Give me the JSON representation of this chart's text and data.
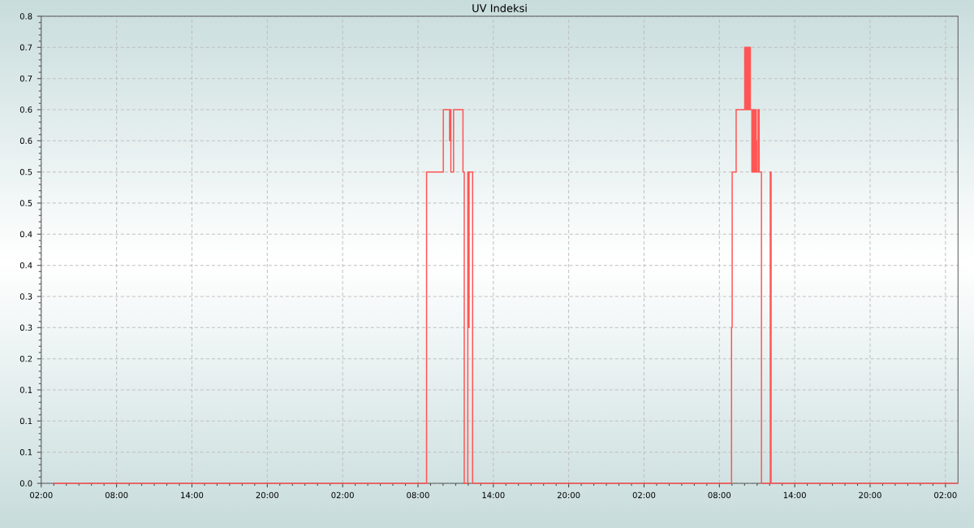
{
  "chart_data": {
    "type": "step",
    "title": "UV Indeksi",
    "x": [
      "2000-01-01T03:00",
      "2000-01-02T08:41",
      "2000-01-02T10:01",
      "2000-01-02T10:31",
      "2000-01-02T10:34",
      "2000-01-02T10:37",
      "2000-01-02T10:50",
      "2000-01-02T11:35",
      "2000-01-02T11:41",
      "2000-01-02T11:58",
      "2000-01-02T12:01",
      "2000-01-02T12:04",
      "2000-01-02T12:21",
      "2000-01-03T08:58",
      "2000-01-03T09:01",
      "2000-01-03T09:20",
      "2000-01-03T10:01",
      "2000-01-03T10:06",
      "2000-01-03T10:09",
      "2000-01-03T10:14",
      "2000-01-03T10:17",
      "2000-01-03T10:22",
      "2000-01-03T10:25",
      "2000-01-03T10:28",
      "2000-01-03T10:35",
      "2000-01-03T10:39",
      "2000-01-03T10:43",
      "2000-01-03T10:47",
      "2000-01-03T10:50",
      "2000-01-03T10:53",
      "2000-01-03T10:56",
      "2000-01-03T10:58",
      "2000-01-03T11:05",
      "2000-01-03T11:10",
      "2000-01-03T11:21",
      "2000-01-03T12:03",
      "2000-01-03T12:07",
      "2000-01-04T03:00"
    ],
    "values": [
      0,
      0.5,
      0.6,
      0.55,
      0.6,
      0.5,
      0.6,
      0.5,
      0,
      0.5,
      0.25,
      0.5,
      0,
      0.25,
      0.5,
      0.6,
      0.7,
      0.6,
      0.7,
      0.6,
      0.7,
      0.6,
      0.7,
      0.6,
      0.5,
      0.6,
      0.5,
      0.6,
      0.5,
      0.6,
      0.55,
      0.5,
      0.6,
      0.5,
      0,
      0.5,
      0,
      0
    ],
    "color": "#ff5555",
    "xlim": [
      "2000-01-01T02:00",
      "2000-01-04T03:00"
    ],
    "ylim": [
      0,
      0.75
    ],
    "xticks": [
      {
        "value": "2000-01-01T02:00",
        "label": "02:00"
      },
      {
        "value": "2000-01-01T08:00",
        "label": "08:00"
      },
      {
        "value": "2000-01-01T14:00",
        "label": "14:00"
      },
      {
        "value": "2000-01-01T20:00",
        "label": "20:00"
      },
      {
        "value": "2000-01-02T02:00",
        "label": "02:00"
      },
      {
        "value": "2000-01-02T08:00",
        "label": "08:00"
      },
      {
        "value": "2000-01-02T14:00",
        "label": "14:00"
      },
      {
        "value": "2000-01-02T20:00",
        "label": "20:00"
      },
      {
        "value": "2000-01-03T02:00",
        "label": "02:00"
      },
      {
        "value": "2000-01-03T08:00",
        "label": "08:00"
      },
      {
        "value": "2000-01-03T14:00",
        "label": "14:00"
      },
      {
        "value": "2000-01-03T20:00",
        "label": "20:00"
      },
      {
        "value": "2000-01-04T02:00",
        "label": "02:00"
      }
    ],
    "yticks": [
      {
        "value": 0,
        "label": "0.0"
      },
      {
        "value": 0.05,
        "label": "0.1"
      },
      0.1,
      {
        "value": 0.15,
        "label": "0.1"
      },
      0.2,
      {
        "value": 0.25,
        "label": "0.3"
      },
      0.3,
      {
        "value": 0.35,
        "label": "0.4"
      },
      0.4,
      {
        "value": 0.45,
        "label": "0.5"
      },
      0.5,
      {
        "value": 0.55,
        "label": "0.6"
      },
      0.6,
      {
        "value": 0.65,
        "label": "0.7"
      },
      0.7,
      {
        "value": 0.75,
        "label": "0.8"
      }
    ],
    "grid": true
  }
}
